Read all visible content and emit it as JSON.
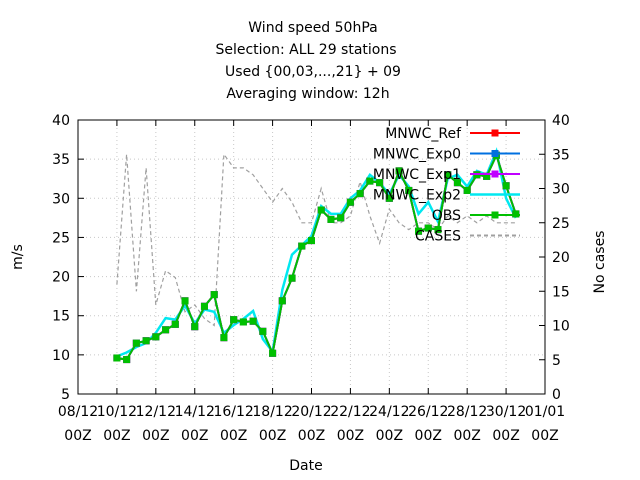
{
  "chart_data": {
    "type": "line",
    "title_lines": [
      "Wind speed 50hPa",
      "Selection: ALL      29 stations",
      "Used {00,03,...,21} + 09",
      "Averaging window: 12h"
    ],
    "xlabel": "Date",
    "ylabel": "m/s",
    "y2label": "No cases",
    "ylim": [
      5,
      40
    ],
    "y2lim": [
      0,
      40
    ],
    "yticks": [
      5,
      10,
      15,
      20,
      25,
      30,
      35,
      40
    ],
    "y2ticks": [
      0,
      5,
      10,
      15,
      20,
      25,
      30,
      35,
      40
    ],
    "x_tick_labels": [
      {
        "top": "08/12",
        "bottom": "00Z"
      },
      {
        "top": "10/12",
        "bottom": "00Z"
      },
      {
        "top": "12/12",
        "bottom": "00Z"
      },
      {
        "top": "14/12",
        "bottom": "00Z"
      },
      {
        "top": "16/12",
        "bottom": "00Z"
      },
      {
        "top": "18/12",
        "bottom": "00Z"
      },
      {
        "top": "20/12",
        "bottom": "00Z"
      },
      {
        "top": "22/12",
        "bottom": "00Z"
      },
      {
        "top": "24/12",
        "bottom": "00Z"
      },
      {
        "top": "26/12",
        "bottom": "00Z"
      },
      {
        "top": "28/12",
        "bottom": "00Z"
      },
      {
        "top": "30/12",
        "bottom": "00Z"
      },
      {
        "top": "01/01",
        "bottom": "00Z"
      }
    ],
    "x_start": "08/12 00Z",
    "x_step_hours": 12,
    "x_index": [
      4,
      5,
      6,
      7,
      8,
      9,
      10,
      11,
      12,
      13,
      14,
      15,
      16,
      17,
      18,
      19,
      20,
      21,
      22,
      23,
      24,
      25,
      26,
      27,
      28,
      29,
      30,
      31,
      32,
      33,
      34,
      35,
      36,
      37,
      38,
      39,
      40,
      41,
      42,
      43,
      44,
      45
    ],
    "legend": {
      "placement": "top-right"
    },
    "series": [
      {
        "name": "MNWC_Ref",
        "color": "#ff0000",
        "axis": "left",
        "dash": "none",
        "marker": "square",
        "values": [
          9.6,
          9.4,
          11.5,
          11.8,
          12.3,
          13.2,
          13.9,
          16.9,
          13.6,
          16.2,
          17.7,
          12.2,
          14.5,
          14.2,
          14.3,
          13.0,
          10.2,
          16.9,
          19.8,
          23.9,
          24.6,
          28.5,
          27.3,
          27.5,
          29.5,
          30.6,
          32.2,
          32.0,
          30.0,
          33.5,
          31.0,
          25.8,
          26.2,
          26.0,
          33.0,
          32.0,
          31.0,
          33.0,
          32.8,
          35.5,
          31.6,
          28.0
        ]
      },
      {
        "name": "MNWC_Exp0",
        "color": "#0070e0",
        "axis": "left",
        "dash": "none",
        "marker": "square",
        "values": [
          9.6,
          9.4,
          11.5,
          11.8,
          12.3,
          13.2,
          13.9,
          16.9,
          13.6,
          16.2,
          17.7,
          12.2,
          14.5,
          14.2,
          14.3,
          13.0,
          10.2,
          16.9,
          19.8,
          23.9,
          24.6,
          28.5,
          27.3,
          27.5,
          29.5,
          30.6,
          32.2,
          32.0,
          30.0,
          33.5,
          31.0,
          25.8,
          26.2,
          26.0,
          33.0,
          32.0,
          31.0,
          33.0,
          32.8,
          35.5,
          31.6,
          28.0
        ]
      },
      {
        "name": "MNWC_Exp1",
        "color": "#c000ff",
        "axis": "left",
        "dash": "none",
        "marker": "square",
        "values": [
          9.6,
          9.4,
          11.5,
          11.8,
          12.3,
          13.2,
          13.9,
          16.9,
          13.6,
          16.2,
          17.7,
          12.2,
          14.5,
          14.2,
          14.3,
          13.0,
          10.2,
          16.9,
          19.8,
          23.9,
          24.6,
          28.5,
          27.3,
          27.5,
          29.5,
          30.6,
          32.2,
          32.0,
          30.0,
          33.5,
          31.0,
          25.8,
          26.2,
          26.0,
          33.0,
          32.0,
          31.0,
          33.0,
          32.8,
          35.5,
          31.6,
          28.0
        ]
      },
      {
        "name": "MNWC_Exp2",
        "color": "#00e8f0",
        "axis": "left",
        "dash": "none",
        "marker": "none",
        "values": [
          9.8,
          10.3,
          11.0,
          11.5,
          12.8,
          14.7,
          14.5,
          16.3,
          14.0,
          15.8,
          15.5,
          12.8,
          13.8,
          14.6,
          15.6,
          12.0,
          10.4,
          18.3,
          22.8,
          24.0,
          25.2,
          29.0,
          28.0,
          28.0,
          30.0,
          31.0,
          33.0,
          32.0,
          30.5,
          33.0,
          31.5,
          28.0,
          29.5,
          27.0,
          32.5,
          33.0,
          31.5,
          33.5,
          33.0,
          36.0,
          30.0,
          27.5
        ]
      },
      {
        "name": "OBS",
        "color": "#00c000",
        "axis": "left",
        "dash": "none",
        "marker": "square",
        "values": [
          9.6,
          9.4,
          11.5,
          11.8,
          12.3,
          13.2,
          13.9,
          16.9,
          13.6,
          16.2,
          17.7,
          12.2,
          14.5,
          14.2,
          14.3,
          13.0,
          10.2,
          16.9,
          19.8,
          23.9,
          24.6,
          28.5,
          27.3,
          27.5,
          29.5,
          30.6,
          32.2,
          32.0,
          30.0,
          33.5,
          31.0,
          25.8,
          26.2,
          26.0,
          33.0,
          32.0,
          31.0,
          33.0,
          32.8,
          35.5,
          31.6,
          28.0
        ]
      },
      {
        "name": "CASES",
        "color": "#a0a0a0",
        "axis": "right",
        "dash": "dashed",
        "marker": "none",
        "values": [
          16,
          35,
          15,
          33,
          13,
          18,
          17,
          12,
          13,
          11,
          10,
          35,
          33,
          33,
          32,
          30,
          28,
          30,
          28,
          25,
          25,
          30,
          25,
          25,
          26,
          31,
          26,
          22,
          27,
          25,
          24,
          25,
          25,
          24,
          26,
          25,
          26,
          25,
          26,
          25,
          25,
          25
        ]
      }
    ]
  }
}
